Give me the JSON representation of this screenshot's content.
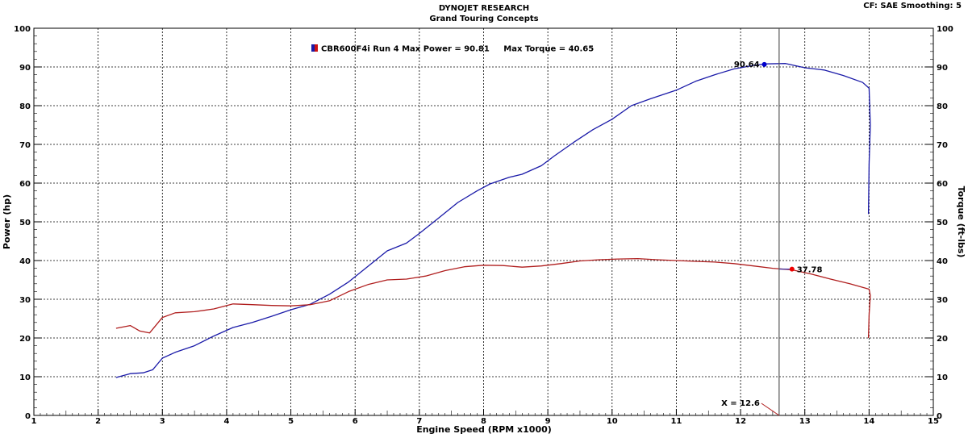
{
  "chart_data": {
    "type": "line",
    "title": "DYNOJET RESEARCH",
    "subtitle": "Grand Touring Concepts",
    "corner_info": "CF: SAE  Smoothing: 5",
    "legend_text": "CBR600F4i Run 4 Max Power = 90.81     Max Torque = 40.65",
    "legend_swatch_colors": [
      "#1a1aa8",
      "#cc1111"
    ],
    "xlabel": "Engine Speed (RPM x1000)",
    "ylabel_left": "Power (hp)",
    "ylabel_right": "Torque (ft-lbs)",
    "xlim": [
      1,
      15
    ],
    "ylim": [
      0,
      100
    ],
    "x_ticks": [
      "1",
      "2",
      "3",
      "4",
      "5",
      "6",
      "7",
      "8",
      "9",
      "10",
      "11",
      "12",
      "13",
      "14",
      "15"
    ],
    "y_ticks": [
      "0",
      "10",
      "20",
      "30",
      "40",
      "50",
      "60",
      "70",
      "80",
      "90",
      "100"
    ],
    "grid": true,
    "cursor": {
      "x": 12.6,
      "label": "X = 12.6"
    },
    "series": [
      {
        "color": "#1a1aa8",
        "axis": "left",
        "marker": {
          "x": 12.37,
          "y": 90.64,
          "label": "90.64"
        },
        "points": [
          [
            2.28,
            9.8
          ],
          [
            2.5,
            10.8
          ],
          [
            2.7,
            11.0
          ],
          [
            2.85,
            11.8
          ],
          [
            3.0,
            14.8
          ],
          [
            3.2,
            16.3
          ],
          [
            3.5,
            18.0
          ],
          [
            3.8,
            20.5
          ],
          [
            4.1,
            22.7
          ],
          [
            4.4,
            24.0
          ],
          [
            4.7,
            25.6
          ],
          [
            5.0,
            27.3
          ],
          [
            5.3,
            28.7
          ],
          [
            5.6,
            31.3
          ],
          [
            5.9,
            34.5
          ],
          [
            6.2,
            38.5
          ],
          [
            6.5,
            42.5
          ],
          [
            6.8,
            44.5
          ],
          [
            7.0,
            47.0
          ],
          [
            7.3,
            51.0
          ],
          [
            7.6,
            55.0
          ],
          [
            7.9,
            58.0
          ],
          [
            8.1,
            59.8
          ],
          [
            8.4,
            61.5
          ],
          [
            8.6,
            62.3
          ],
          [
            8.9,
            64.5
          ],
          [
            9.1,
            67.0
          ],
          [
            9.4,
            70.5
          ],
          [
            9.7,
            73.8
          ],
          [
            10.0,
            76.5
          ],
          [
            10.3,
            80.0
          ],
          [
            10.6,
            81.8
          ],
          [
            11.0,
            84.0
          ],
          [
            11.3,
            86.3
          ],
          [
            11.6,
            88.0
          ],
          [
            11.9,
            89.5
          ],
          [
            12.2,
            90.4
          ],
          [
            12.4,
            90.8
          ],
          [
            12.7,
            90.9
          ],
          [
            13.0,
            89.8
          ],
          [
            13.3,
            89.2
          ],
          [
            13.6,
            87.8
          ],
          [
            13.9,
            86.0
          ],
          [
            14.0,
            84.5
          ],
          [
            14.02,
            75.0
          ],
          [
            14.0,
            65.0
          ],
          [
            13.99,
            52.0
          ]
        ]
      },
      {
        "color": "#b01e1e",
        "axis": "right",
        "marker": {
          "x": 12.8,
          "y": 37.78,
          "label": "37.78"
        },
        "points": [
          [
            2.28,
            22.5
          ],
          [
            2.5,
            23.2
          ],
          [
            2.65,
            21.8
          ],
          [
            2.8,
            21.3
          ],
          [
            3.0,
            25.3
          ],
          [
            3.2,
            26.5
          ],
          [
            3.5,
            26.8
          ],
          [
            3.8,
            27.5
          ],
          [
            4.1,
            28.8
          ],
          [
            4.4,
            28.6
          ],
          [
            4.7,
            28.4
          ],
          [
            5.0,
            28.3
          ],
          [
            5.3,
            28.6
          ],
          [
            5.6,
            29.6
          ],
          [
            5.9,
            32.0
          ],
          [
            6.2,
            33.8
          ],
          [
            6.5,
            35.0
          ],
          [
            6.8,
            35.2
          ],
          [
            7.1,
            36.0
          ],
          [
            7.4,
            37.4
          ],
          [
            7.7,
            38.4
          ],
          [
            8.0,
            38.8
          ],
          [
            8.3,
            38.7
          ],
          [
            8.6,
            38.3
          ],
          [
            8.9,
            38.6
          ],
          [
            9.2,
            39.2
          ],
          [
            9.5,
            39.9
          ],
          [
            9.8,
            40.2
          ],
          [
            10.1,
            40.4
          ],
          [
            10.4,
            40.5
          ],
          [
            10.7,
            40.2
          ],
          [
            11.0,
            40.0
          ],
          [
            11.3,
            39.8
          ],
          [
            11.6,
            39.6
          ],
          [
            11.9,
            39.2
          ],
          [
            12.2,
            38.6
          ],
          [
            12.5,
            38.0
          ],
          [
            12.8,
            37.6
          ],
          [
            13.1,
            36.5
          ],
          [
            13.4,
            35.2
          ],
          [
            13.7,
            34.0
          ],
          [
            14.0,
            32.6
          ],
          [
            14.02,
            31.0
          ],
          [
            14.0,
            26.0
          ],
          [
            13.99,
            20.0
          ]
        ]
      }
    ]
  }
}
